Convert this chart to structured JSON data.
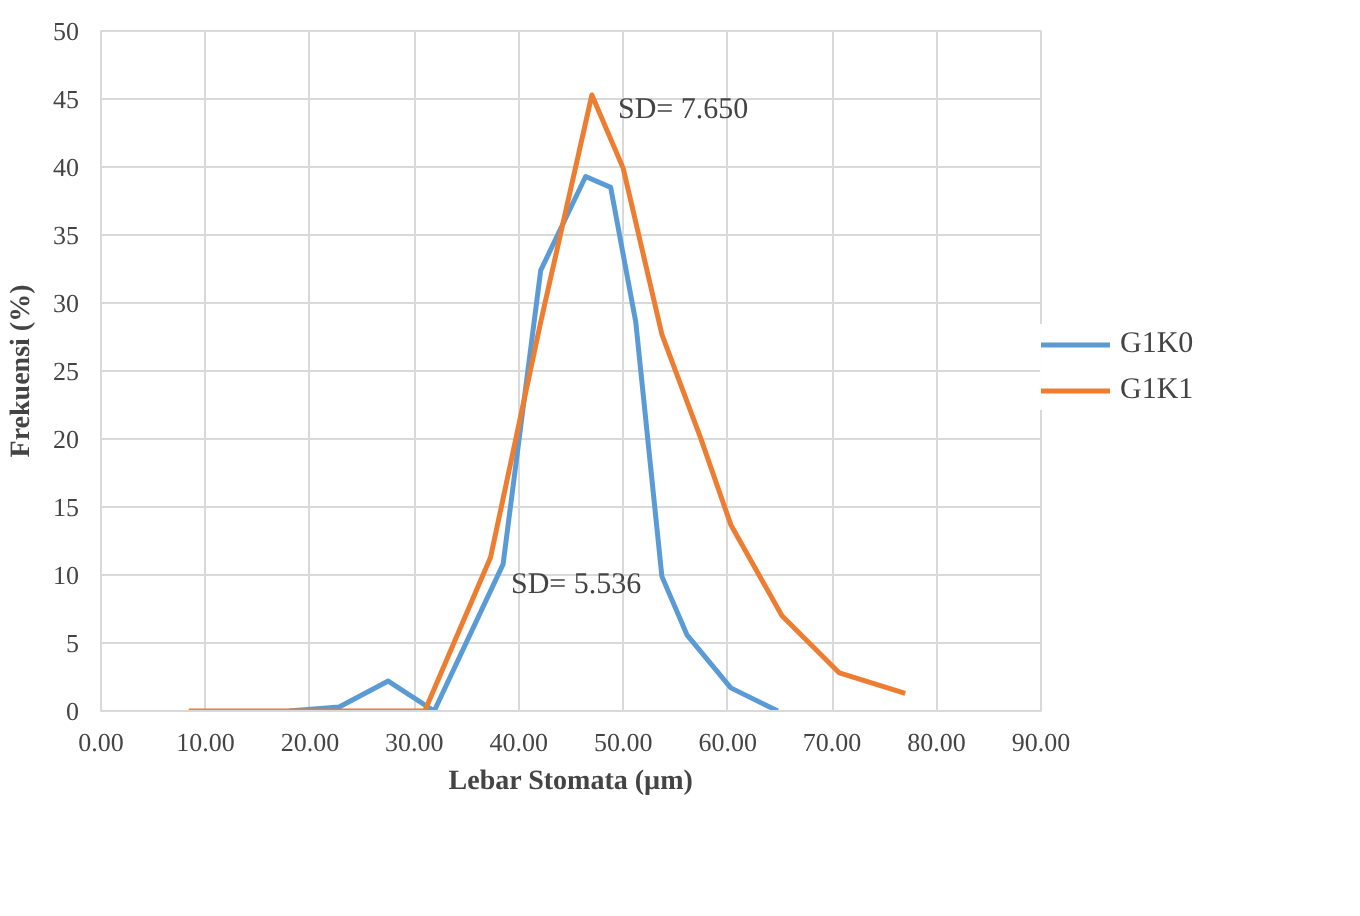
{
  "chart_data": {
    "type": "line",
    "xlabel": "Lebar Stomata (µm)",
    "ylabel": "Frekuensi (%)",
    "xlim": [
      0,
      90
    ],
    "ylim": [
      0,
      50
    ],
    "xticks": [
      {
        "value": 0,
        "label": "0.00"
      },
      {
        "value": 10,
        "label": "10.00"
      },
      {
        "value": 20,
        "label": "20.00"
      },
      {
        "value": 30,
        "label": "30.00"
      },
      {
        "value": 40,
        "label": "40.00"
      },
      {
        "value": 50,
        "label": "50.00"
      },
      {
        "value": 60,
        "label": "60.00"
      },
      {
        "value": 70,
        "label": "70.00"
      },
      {
        "value": 80,
        "label": "80.00"
      },
      {
        "value": 90,
        "label": "90.00"
      }
    ],
    "yticks": [
      0,
      5,
      10,
      15,
      20,
      25,
      30,
      35,
      40,
      45,
      50
    ],
    "grid": true,
    "legend": "right",
    "marker": "none",
    "line_style": "solid",
    "series": [
      {
        "name": "G1K0",
        "color": "#5b9bd5",
        "x": [
          18,
          22.8,
          27.5,
          31.9,
          38.5,
          42.1,
          46.4,
          48.8,
          51.2,
          53.7,
          56.1,
          60.3,
          64.8
        ],
        "values": [
          0,
          0.3,
          2.2,
          0,
          10.8,
          32.4,
          39.3,
          38.5,
          28.6,
          9.9,
          5.6,
          1.7,
          0
        ]
      },
      {
        "name": "G1K1",
        "color": "#ed7d31",
        "x": [
          8.4,
          22.7,
          31,
          37.3,
          42.1,
          47,
          50,
          53.7,
          57.4,
          60.3,
          65.2,
          70.7,
          77
        ],
        "values": [
          0,
          0,
          0,
          11.3,
          28.6,
          45.3,
          39.9,
          27.7,
          20.1,
          13.7,
          7,
          2.8,
          1.3
        ]
      }
    ],
    "annotations": [
      {
        "text": "SD= 7.650",
        "x": 49.5,
        "y": 43
      },
      "SD= 5.536"
    ]
  }
}
